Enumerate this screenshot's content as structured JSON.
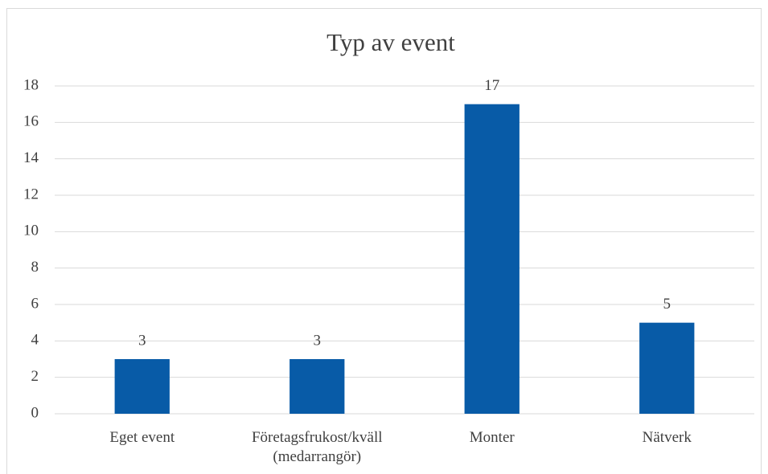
{
  "chart_data": {
    "type": "bar",
    "title": "Typ av event",
    "categories": [
      "Eget event",
      "Företagsfrukost/kväll (medarrangör)",
      "Monter",
      "Nätverk"
    ],
    "values": [
      3,
      3,
      17,
      5
    ],
    "color": "#085ba7",
    "ylim": [
      0,
      18
    ],
    "yticks": [
      0,
      2,
      4,
      6,
      8,
      10,
      12,
      14,
      16,
      18
    ],
    "grid": true
  }
}
